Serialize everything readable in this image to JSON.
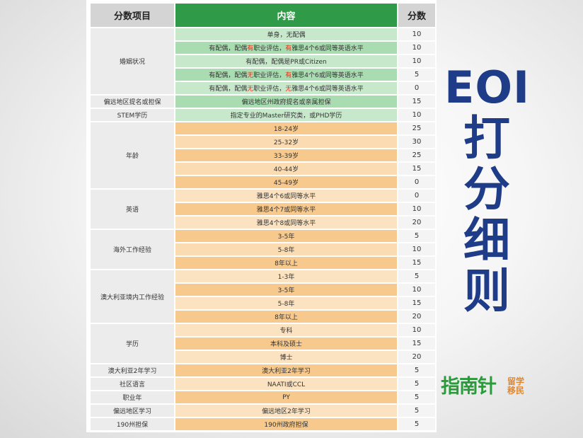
{
  "table": {
    "headers": {
      "category": "分数项目",
      "content": "内容",
      "score": "分数"
    },
    "groups": [
      {
        "category": "婚姻状况",
        "rows": [
          {
            "style": "g1",
            "content": [
              {
                "t": "单身，无配偶"
              }
            ],
            "score": "10"
          },
          {
            "style": "g2",
            "content": [
              {
                "t": "有配偶，配偶"
              },
              {
                "t": "有",
                "red": true
              },
              {
                "t": "职业评估，"
              },
              {
                "t": "有",
                "red": true
              },
              {
                "t": "雅思4个6或同等英语水平"
              }
            ],
            "score": "10"
          },
          {
            "style": "g1",
            "content": [
              {
                "t": "有配偶，配偶是PR或Citizen"
              }
            ],
            "score": "10"
          },
          {
            "style": "g2",
            "content": [
              {
                "t": "有配偶，配偶"
              },
              {
                "t": "无",
                "red": true
              },
              {
                "t": "职业评估，"
              },
              {
                "t": "有",
                "red": true
              },
              {
                "t": "雅思4个6或同等英语水平"
              }
            ],
            "score": "5"
          },
          {
            "style": "g1",
            "content": [
              {
                "t": "有配偶，配偶"
              },
              {
                "t": "无",
                "red": true
              },
              {
                "t": "职业评估，"
              },
              {
                "t": "无",
                "red": true
              },
              {
                "t": "雅思4个6或同等英语水平"
              }
            ],
            "score": "0"
          }
        ]
      },
      {
        "category": "偏远地区提名或担保",
        "rows": [
          {
            "style": "g2",
            "content": [
              {
                "t": "偏远地区州政府提名或亲属担保"
              }
            ],
            "score": "15"
          }
        ]
      },
      {
        "category": "STEM学历",
        "rows": [
          {
            "style": "g1",
            "content": [
              {
                "t": "指定专业的Master研究类，或PHD学历"
              }
            ],
            "score": "10"
          }
        ]
      },
      {
        "category": "年龄",
        "rows": [
          {
            "style": "o1",
            "content": [
              {
                "t": "18-24岁"
              }
            ],
            "score": "25"
          },
          {
            "style": "o2",
            "content": [
              {
                "t": "25-32岁"
              }
            ],
            "score": "30"
          },
          {
            "style": "o1",
            "content": [
              {
                "t": "33-39岁"
              }
            ],
            "score": "25"
          },
          {
            "style": "o2",
            "content": [
              {
                "t": "40-44岁"
              }
            ],
            "score": "15"
          },
          {
            "style": "o1",
            "content": [
              {
                "t": "45-49岁"
              }
            ],
            "score": "0"
          }
        ]
      },
      {
        "category": "英语",
        "rows": [
          {
            "style": "o2w",
            "content": [
              {
                "t": "雅思4个6或同等水平"
              }
            ],
            "score": "0"
          },
          {
            "style": "o1",
            "content": [
              {
                "t": "雅思4个7或同等水平"
              }
            ],
            "score": "10"
          },
          {
            "style": "o2w",
            "content": [
              {
                "t": "雅思4个8或同等水平"
              }
            ],
            "score": "20"
          }
        ]
      },
      {
        "category": "海外工作经验",
        "rows": [
          {
            "style": "o1",
            "content": [
              {
                "t": "3-5年"
              }
            ],
            "score": "5"
          },
          {
            "style": "o2",
            "content": [
              {
                "t": "5-8年"
              }
            ],
            "score": "10"
          },
          {
            "style": "o1",
            "content": [
              {
                "t": "8年以上"
              }
            ],
            "score": "15"
          }
        ]
      },
      {
        "category": "澳大利亚境内工作经验",
        "rows": [
          {
            "style": "o2w",
            "content": [
              {
                "t": "1-3年"
              }
            ],
            "score": "5"
          },
          {
            "style": "o1",
            "content": [
              {
                "t": "3-5年"
              }
            ],
            "score": "10"
          },
          {
            "style": "o2w",
            "content": [
              {
                "t": "5-8年"
              }
            ],
            "score": "15"
          },
          {
            "style": "o1",
            "content": [
              {
                "t": "8年以上"
              }
            ],
            "score": "20"
          }
        ]
      },
      {
        "category": "学历",
        "rows": [
          {
            "style": "o2w",
            "content": [
              {
                "t": "专科"
              }
            ],
            "score": "10"
          },
          {
            "style": "o1",
            "content": [
              {
                "t": "本科及硕士"
              }
            ],
            "score": "15"
          },
          {
            "style": "o2w",
            "content": [
              {
                "t": "博士"
              }
            ],
            "score": "20"
          }
        ]
      },
      {
        "category": "澳大利亚2年学习",
        "rows": [
          {
            "style": "o1",
            "content": [
              {
                "t": "澳大利亚2年学习"
              }
            ],
            "score": "5"
          }
        ]
      },
      {
        "category": "社区语言",
        "rows": [
          {
            "style": "o2w",
            "content": [
              {
                "t": "NAATI或CCL"
              }
            ],
            "score": "5"
          }
        ]
      },
      {
        "category": "职业年",
        "rows": [
          {
            "style": "o1",
            "content": [
              {
                "t": "PY"
              }
            ],
            "score": "5"
          }
        ]
      },
      {
        "category": "偏远地区学习",
        "rows": [
          {
            "style": "o2w",
            "content": [
              {
                "t": "偏远地区2年学习"
              }
            ],
            "score": "5"
          }
        ]
      },
      {
        "category": "190州担保",
        "rows": [
          {
            "style": "o1",
            "content": [
              {
                "t": "190州政府担保"
              }
            ],
            "score": "5"
          }
        ]
      }
    ]
  },
  "side_title": {
    "line1": "EOI",
    "chars": [
      "打",
      "分",
      "细",
      "则"
    ]
  },
  "logo": {
    "main": "指南针",
    "side_top": "留学",
    "side_bottom": "移民"
  }
}
